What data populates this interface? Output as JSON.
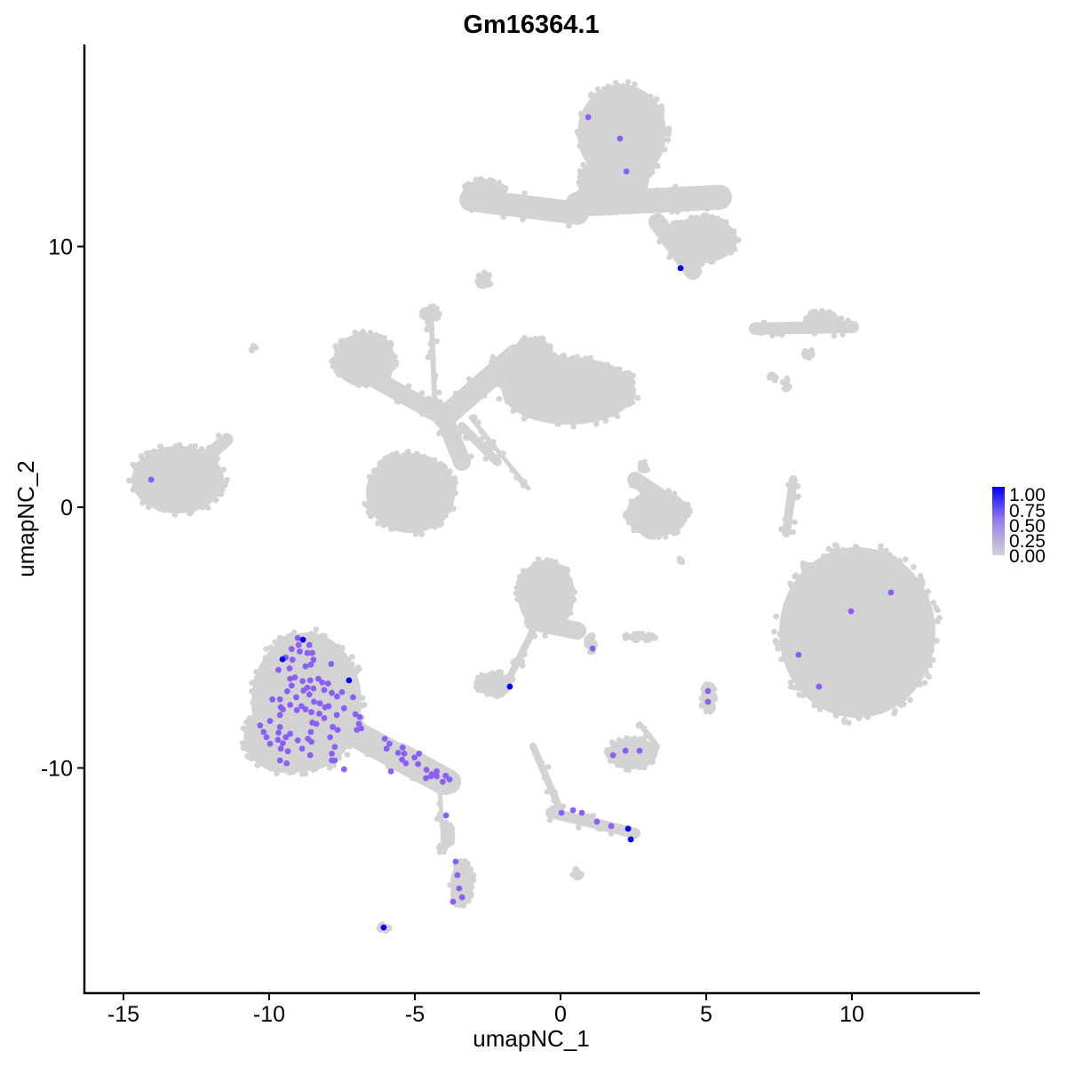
{
  "chart_data": {
    "type": "scatter",
    "title": "Gm16364.1",
    "xlabel": "umapNC_1",
    "ylabel": "umapNC_2",
    "xlim": [
      -16.3,
      14.4
    ],
    "ylim": [
      -18.6,
      17.75
    ],
    "xticks": [
      -15,
      -10,
      -5,
      0,
      5,
      10
    ],
    "yticks": [
      -10,
      0,
      10
    ],
    "xtick_labels": [
      "-15",
      "-10",
      "-5",
      "0",
      "5",
      "10"
    ],
    "ytick_labels": [
      "-10",
      "0",
      "10"
    ],
    "grid": false,
    "legend": {
      "placement": "right",
      "type": "colorbar",
      "labels": [
        "1.00",
        "0.75",
        "0.50",
        "0.25",
        "0.00"
      ],
      "low_color": "#d3d3d3",
      "high_color": "#0000ff",
      "range": [
        0,
        1
      ]
    },
    "background_cells_value": 0,
    "expressing_points": [
      {
        "x": 4.12,
        "y": 9.17,
        "v": 1
      },
      {
        "x": -8.84,
        "y": -5.08,
        "v": 1
      },
      {
        "x": -9.54,
        "y": -5.83,
        "v": 1
      },
      {
        "x": -7.26,
        "y": -6.64,
        "v": 1
      },
      {
        "x": -1.74,
        "y": -6.88,
        "v": 1
      },
      {
        "x": 2.32,
        "y": -12.33,
        "v": 1
      },
      {
        "x": 2.41,
        "y": -12.74,
        "v": 1
      },
      {
        "x": -6.07,
        "y": -16.12,
        "v": 1
      },
      {
        "x": 0.95,
        "y": 14.96,
        "v": 0.5
      },
      {
        "x": 2.04,
        "y": 14.14,
        "v": 0.5
      },
      {
        "x": 2.26,
        "y": 12.88,
        "v": 0.5
      },
      {
        "x": -14.05,
        "y": 1.06,
        "v": 0.5
      },
      {
        "x": 11.34,
        "y": -3.27,
        "v": 0.5
      },
      {
        "x": 9.97,
        "y": -3.99,
        "v": 0.5
      },
      {
        "x": 8.17,
        "y": -5.66,
        "v": 0.5
      },
      {
        "x": 8.87,
        "y": -6.88,
        "v": 0.5
      },
      {
        "x": 1.1,
        "y": -5.42,
        "v": 0.5
      },
      {
        "x": 5.06,
        "y": -7.05,
        "v": 0.5
      },
      {
        "x": 5.06,
        "y": -7.46,
        "v": 0.5
      },
      {
        "x": 2.23,
        "y": -9.34,
        "v": 0.5
      },
      {
        "x": 2.71,
        "y": -9.34,
        "v": 0.5
      },
      {
        "x": 1.8,
        "y": -9.51,
        "v": 0.5
      },
      {
        "x": 0.03,
        "y": -11.72,
        "v": 0.5
      },
      {
        "x": 0.43,
        "y": -11.62,
        "v": 0.5
      },
      {
        "x": 0.73,
        "y": -11.72,
        "v": 0.5
      },
      {
        "x": 1.25,
        "y": -12.06,
        "v": 0.5
      },
      {
        "x": 1.74,
        "y": -12.23,
        "v": 0.5
      },
      {
        "x": -3.93,
        "y": -11.82,
        "v": 0.5
      },
      {
        "x": -3.6,
        "y": -13.59,
        "v": 0.5
      },
      {
        "x": -3.54,
        "y": -14.11,
        "v": 0.5
      },
      {
        "x": -3.48,
        "y": -14.62,
        "v": 0.5
      },
      {
        "x": -3.38,
        "y": -14.96,
        "v": 0.5
      },
      {
        "x": -3.69,
        "y": -15.13,
        "v": 0.5
      },
      {
        "x": -9.02,
        "y": -5.02,
        "v": 0.5
      },
      {
        "x": -8.99,
        "y": -5.28,
        "v": 0.5
      },
      {
        "x": -8.62,
        "y": -5.28,
        "v": 0.5
      },
      {
        "x": -9.23,
        "y": -5.44,
        "v": 0.5
      },
      {
        "x": -8.95,
        "y": -5.53,
        "v": 0.5
      },
      {
        "x": -8.69,
        "y": -5.59,
        "v": 0.5
      },
      {
        "x": -8.52,
        "y": -5.59,
        "v": 0.5
      },
      {
        "x": -9.43,
        "y": -5.76,
        "v": 0.5
      },
      {
        "x": -9.2,
        "y": -5.85,
        "v": 0.5
      },
      {
        "x": -8.48,
        "y": -5.85,
        "v": 0.5
      },
      {
        "x": -9.68,
        "y": -6.24,
        "v": 0.5
      },
      {
        "x": -9.3,
        "y": -6.18,
        "v": 0.5
      },
      {
        "x": -8.75,
        "y": -6.1,
        "v": 0.5
      },
      {
        "x": -8.57,
        "y": -6.04,
        "v": 0.5
      },
      {
        "x": -7.87,
        "y": -6.01,
        "v": 0.5
      },
      {
        "x": -9.28,
        "y": -6.58,
        "v": 0.5
      },
      {
        "x": -9.12,
        "y": -6.53,
        "v": 0.5
      },
      {
        "x": -8.85,
        "y": -6.67,
        "v": 0.5
      },
      {
        "x": -8.59,
        "y": -6.64,
        "v": 0.5
      },
      {
        "x": -8.31,
        "y": -6.58,
        "v": 0.5
      },
      {
        "x": -8.18,
        "y": -6.72,
        "v": 0.5
      },
      {
        "x": -7.98,
        "y": -6.76,
        "v": 0.5
      },
      {
        "x": -9.23,
        "y": -6.84,
        "v": 0.5
      },
      {
        "x": -8.69,
        "y": -6.92,
        "v": 0.5
      },
      {
        "x": -8.48,
        "y": -6.95,
        "v": 0.5
      },
      {
        "x": -9.38,
        "y": -7.06,
        "v": 0.5
      },
      {
        "x": -8.82,
        "y": -7.03,
        "v": 0.5
      },
      {
        "x": -8.11,
        "y": -7.01,
        "v": 0.5
      },
      {
        "x": -7.85,
        "y": -7.12,
        "v": 0.5
      },
      {
        "x": -7.5,
        "y": -7.09,
        "v": 0.5
      },
      {
        "x": -7.67,
        "y": -7.26,
        "v": 0.5
      },
      {
        "x": -7.12,
        "y": -7.29,
        "v": 0.5
      },
      {
        "x": -9.89,
        "y": -7.37,
        "v": 0.5
      },
      {
        "x": -9.63,
        "y": -7.37,
        "v": 0.5
      },
      {
        "x": -9.07,
        "y": -7.29,
        "v": 0.5
      },
      {
        "x": -8.62,
        "y": -7.18,
        "v": 0.5
      },
      {
        "x": -8.46,
        "y": -7.46,
        "v": 0.5
      },
      {
        "x": -8.26,
        "y": -7.52,
        "v": 0.5
      },
      {
        "x": -9.28,
        "y": -7.58,
        "v": 0.5
      },
      {
        "x": -8.89,
        "y": -7.63,
        "v": 0.5
      },
      {
        "x": -8.08,
        "y": -7.67,
        "v": 0.5
      },
      {
        "x": -7.96,
        "y": -7.63,
        "v": 0.5
      },
      {
        "x": -7.43,
        "y": -7.71,
        "v": 0.5
      },
      {
        "x": -9.6,
        "y": -7.67,
        "v": 0.5
      },
      {
        "x": -9.53,
        "y": -7.75,
        "v": 0.5
      },
      {
        "x": -9.05,
        "y": -7.78,
        "v": 0.5
      },
      {
        "x": -8.75,
        "y": -7.75,
        "v": 0.5
      },
      {
        "x": -8.55,
        "y": -7.86,
        "v": 0.5
      },
      {
        "x": -8.28,
        "y": -7.92,
        "v": 0.5
      },
      {
        "x": -9.63,
        "y": -7.97,
        "v": 0.5
      },
      {
        "x": -7.04,
        "y": -7.94,
        "v": 0.5
      },
      {
        "x": -6.89,
        "y": -8.05,
        "v": 0.5
      },
      {
        "x": -9.97,
        "y": -8.2,
        "v": 0.5
      },
      {
        "x": -8.52,
        "y": -8.26,
        "v": 0.5
      },
      {
        "x": -8.38,
        "y": -8.31,
        "v": 0.5
      },
      {
        "x": -8.11,
        "y": -8.09,
        "v": 0.5
      },
      {
        "x": -7.68,
        "y": -7.97,
        "v": 0.5
      },
      {
        "x": -6.92,
        "y": -8.31,
        "v": 0.5
      },
      {
        "x": -10.31,
        "y": -8.37,
        "v": 0.5
      },
      {
        "x": -9.63,
        "y": -8.43,
        "v": 0.5
      },
      {
        "x": -7.82,
        "y": -8.43,
        "v": 0.5
      },
      {
        "x": -7.65,
        "y": -8.54,
        "v": 0.5
      },
      {
        "x": -6.99,
        "y": -8.54,
        "v": 0.5
      },
      {
        "x": -6.84,
        "y": -8.48,
        "v": 0.5
      },
      {
        "x": -10.19,
        "y": -8.62,
        "v": 0.5
      },
      {
        "x": -9.68,
        "y": -8.65,
        "v": 0.5
      },
      {
        "x": -9.28,
        "y": -8.69,
        "v": 0.5
      },
      {
        "x": -8.57,
        "y": -8.62,
        "v": 0.5
      },
      {
        "x": -10.09,
        "y": -8.82,
        "v": 0.5
      },
      {
        "x": -9.43,
        "y": -8.82,
        "v": 0.5
      },
      {
        "x": -7.91,
        "y": -8.82,
        "v": 0.5
      },
      {
        "x": -9.02,
        "y": -8.94,
        "v": 0.5
      },
      {
        "x": -8.67,
        "y": -8.88,
        "v": 0.5
      },
      {
        "x": -9.7,
        "y": -8.92,
        "v": 0.5
      },
      {
        "x": -8.55,
        "y": -9.0,
        "v": 0.5
      },
      {
        "x": -6.03,
        "y": -8.88,
        "v": 0.5
      },
      {
        "x": -5.87,
        "y": -9.07,
        "v": 0.5
      },
      {
        "x": -9.53,
        "y": -9.05,
        "v": 0.5
      },
      {
        "x": -9.97,
        "y": -9.07,
        "v": 0.5
      },
      {
        "x": -7.75,
        "y": -9.19,
        "v": 0.5
      },
      {
        "x": -9.6,
        "y": -9.26,
        "v": 0.5
      },
      {
        "x": -9.36,
        "y": -9.36,
        "v": 0.5
      },
      {
        "x": -8.87,
        "y": -9.26,
        "v": 0.5
      },
      {
        "x": -7.85,
        "y": -9.45,
        "v": 0.5
      },
      {
        "x": -5.97,
        "y": -9.26,
        "v": 0.5
      },
      {
        "x": -5.42,
        "y": -9.22,
        "v": 0.5
      },
      {
        "x": -5.57,
        "y": -9.42,
        "v": 0.5
      },
      {
        "x": -5.36,
        "y": -9.45,
        "v": 0.5
      },
      {
        "x": -8.59,
        "y": -9.51,
        "v": 0.5
      },
      {
        "x": -4.86,
        "y": -9.45,
        "v": 0.5
      },
      {
        "x": -5.01,
        "y": -9.6,
        "v": 0.5
      },
      {
        "x": -7.85,
        "y": -9.71,
        "v": 0.5
      },
      {
        "x": -7.75,
        "y": -9.71,
        "v": 0.5
      },
      {
        "x": -9.63,
        "y": -9.71,
        "v": 0.5
      },
      {
        "x": -9.4,
        "y": -9.82,
        "v": 0.5
      },
      {
        "x": -5.44,
        "y": -9.68,
        "v": 0.5
      },
      {
        "x": -5.31,
        "y": -9.82,
        "v": 0.5
      },
      {
        "x": -4.89,
        "y": -9.85,
        "v": 0.5
      },
      {
        "x": -7.43,
        "y": -10.05,
        "v": 0.5
      },
      {
        "x": -5.82,
        "y": -10.13,
        "v": 0.5
      },
      {
        "x": -4.6,
        "y": -10.07,
        "v": 0.5
      },
      {
        "x": -4.42,
        "y": -10.24,
        "v": 0.5
      },
      {
        "x": -4.25,
        "y": -10.13,
        "v": 0.5
      },
      {
        "x": -4.62,
        "y": -10.39,
        "v": 0.5
      },
      {
        "x": -4.45,
        "y": -10.32,
        "v": 0.5
      },
      {
        "x": -4.25,
        "y": -10.32,
        "v": 0.5
      },
      {
        "x": -3.94,
        "y": -10.3,
        "v": 0.5
      },
      {
        "x": -3.81,
        "y": -10.44,
        "v": 0.5
      },
      {
        "x": -4.04,
        "y": -10.53,
        "v": 0.5
      }
    ]
  }
}
